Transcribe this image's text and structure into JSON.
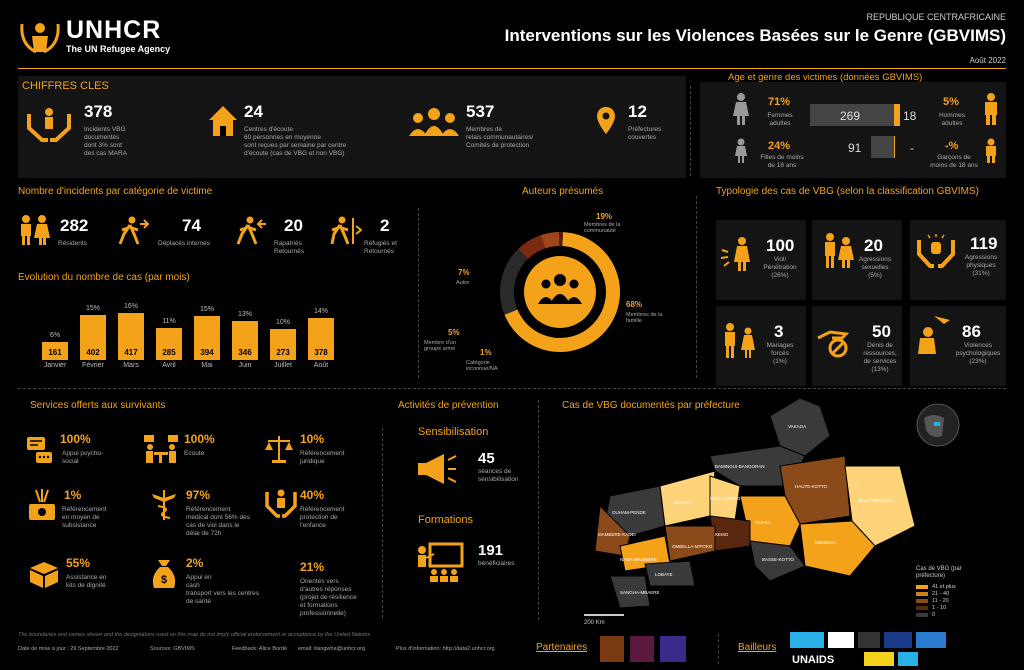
{
  "header": {
    "logo_name": "UNHCR",
    "logo_tagline": "The UN Refugee Agency",
    "country": "REPUBLIQUE CENTRAFRICAINE",
    "title": "Interventions sur les Violences Basées sur le Genre (GBVIMS)",
    "date": "Août 2022"
  },
  "key_figures": {
    "title": "CHIFFRES CLES",
    "items": [
      {
        "value": "378",
        "lines": [
          "Incidents VBG",
          "documentés",
          "dont 3% sont",
          "des cas MARA"
        ]
      },
      {
        "value": "24",
        "lines": [
          "Centres d'écoute",
          "60 personnes en moyenne",
          "sont reçues par semaine par centre",
          "d'écoute (cas de VBG et non VBG)"
        ]
      },
      {
        "value": "537",
        "lines": [
          "Membres de",
          "relais communautaires/",
          "Comités de protection"
        ]
      },
      {
        "value": "12",
        "lines": [
          "Préfectures",
          "couvertes"
        ]
      }
    ]
  },
  "age_gender": {
    "title": "Age et genre des victimes (données GBVIMS)",
    "women_pct": "71%",
    "women_label": "Femmes adultes",
    "women_n": "269",
    "men_n": "18",
    "men_pct": "5%",
    "men_label": "Hommes adultes",
    "girls_pct": "24%",
    "girls_label": "Filles de moins de 18 ans",
    "girls_n": "91",
    "boys_n": "-",
    "boys_pct": "-%",
    "boys_label": "Garçons de moins de 18 ans"
  },
  "victims": {
    "title": "Nombre d'incidents par catégorie de victime",
    "items": [
      {
        "value": "282",
        "label": "Résidents"
      },
      {
        "value": "74",
        "label": "Déplacés internes"
      },
      {
        "value": "20",
        "label": "Rapatriés Retournés"
      },
      {
        "value": "2",
        "label": "Réfugiés et Retournés"
      }
    ]
  },
  "monthly": {
    "title": "Evolution du nombre de cas (par mois)"
  },
  "chart_data": {
    "type": "bar",
    "categories": [
      "Janvier",
      "Février",
      "Mars",
      "Avril",
      "Mai",
      "Juin",
      "Juillet",
      "Août"
    ],
    "values": [
      161,
      402,
      417,
      285,
      394,
      346,
      273,
      378
    ],
    "percent_labels": [
      "6%",
      "15%",
      "16%",
      "11%",
      "15%",
      "13%",
      "10%",
      "14%"
    ]
  },
  "authors": {
    "title": "Auteurs présumés",
    "slices": [
      {
        "pct": "68%",
        "label": "Membres de la famille",
        "value": 68,
        "color": "#f5a21b"
      },
      {
        "pct": "19%",
        "label": "Membres de la communauté",
        "value": 19,
        "color": "#2a2a2a"
      },
      {
        "pct": "7%",
        "label": "Autre",
        "value": 7,
        "color": "#7a2a10"
      },
      {
        "pct": "5%",
        "label": "Membre d'un groupe armé",
        "value": 5,
        "color": "#a0451a"
      },
      {
        "pct": "1%",
        "label": "Catégorie inconnue/NA",
        "value": 1,
        "color": "#5a1a08"
      }
    ]
  },
  "typology": {
    "title": "Typologie des cas de VBG (selon la classification GBVIMS)",
    "items": [
      {
        "value": "100",
        "lines": [
          "Viol/",
          "Pénétration",
          "(26%)"
        ]
      },
      {
        "value": "20",
        "lines": [
          "Agressions",
          "sexuelles",
          "(5%)"
        ]
      },
      {
        "value": "119",
        "lines": [
          "Agressions",
          "physiques",
          "(31%)"
        ]
      },
      {
        "value": "3",
        "lines": [
          "Mariages",
          "forcés",
          "(1%)"
        ]
      },
      {
        "value": "50",
        "lines": [
          "Dénis de",
          "ressources,",
          "de services",
          "(13%)"
        ]
      },
      {
        "value": "86",
        "lines": [
          "Violences",
          "psychologiques",
          "(23%)"
        ]
      }
    ]
  },
  "services": {
    "title": "Services offerts aux survivants",
    "items": [
      {
        "value": "100%",
        "lines": [
          "Appui psycho-",
          "social"
        ]
      },
      {
        "value": "100%",
        "lines": [
          "Ecoute"
        ]
      },
      {
        "value": "10%",
        "lines": [
          "Référencement",
          "juridique"
        ]
      },
      {
        "value": "1%",
        "lines": [
          "Référencement",
          "en moyen de",
          "subsistance"
        ]
      },
      {
        "value": "97%",
        "lines": [
          "Référencement",
          "médical dont 56% des",
          "cas de viol dans le",
          "délai de 72h"
        ]
      },
      {
        "value": "40%",
        "lines": [
          "Référencement",
          "protection de",
          "l'enfance"
        ]
      },
      {
        "value": "55%",
        "lines": [
          "Assistance en",
          "kits de dignité"
        ]
      },
      {
        "value": "2%",
        "lines": [
          "Appui en",
          "cash",
          "transport vers les centres",
          "de santé"
        ]
      },
      {
        "value": "21%",
        "lines": [
          "Orientés vers",
          "d'autres réponses",
          "(projet de résilience",
          "et formations",
          "professionnelle)"
        ]
      }
    ]
  },
  "prevention": {
    "title": "Activités de prévention",
    "sens_title": "Sensibilisation",
    "sens_value": "45",
    "sens_lines": [
      "séances de",
      "sensibilisation"
    ],
    "form_title": "Formations",
    "form_value": "191",
    "form_lines": [
      "bénéficiaires"
    ]
  },
  "map": {
    "title": "Cas de VBG documentés par préfecture",
    "scale": "200 Km",
    "legend_title": "Cas de VBG (par préfecture)",
    "legend": [
      {
        "label": "41 et plus",
        "color": "#f5a21b"
      },
      {
        "label": "21 - 40",
        "color": "#c8841e"
      },
      {
        "label": "11 - 20",
        "color": "#8a4a1a"
      },
      {
        "label": "1 - 10",
        "color": "#5a2810"
      },
      {
        "label": "0",
        "color": "#3a3a3a"
      }
    ],
    "labels": [
      "VAKAGA",
      "BAMINGUI-BANGORAN",
      "OUHAM-PENDE",
      "OUHAM",
      "NANA-GRIBIZI",
      "HAUTE-KOTTO",
      "HAUT-MBOMOU",
      "MBOMOU",
      "OUAKA",
      "KEMO",
      "MAMBERE-KADEI",
      "NANA-MAMBERE",
      "OMBELLA-M'POKO",
      "LOBAYE",
      "SANGHA-MBAERE",
      "BASSE-KOTTO"
    ]
  },
  "footer": {
    "disclaimer": "The boundaries and names shown and the designations used on this map do not imply official endorsement or acceptance by the United Nations",
    "date": "Date de mise à jour : 29 Septembre 2022",
    "source": "Sources: GBVIMS",
    "feedback": "Feedback: Alice Bordé",
    "email": "email: bangwha@unhcr.org",
    "more": "Plus d'information: http://data2.unhcr.org",
    "partners": "Partenaires",
    "donors": "Bailleurs",
    "unaids": "UNAIDS"
  },
  "colors": {
    "accent": "#f5a21b",
    "background": "#000000",
    "panel": "#141414"
  }
}
